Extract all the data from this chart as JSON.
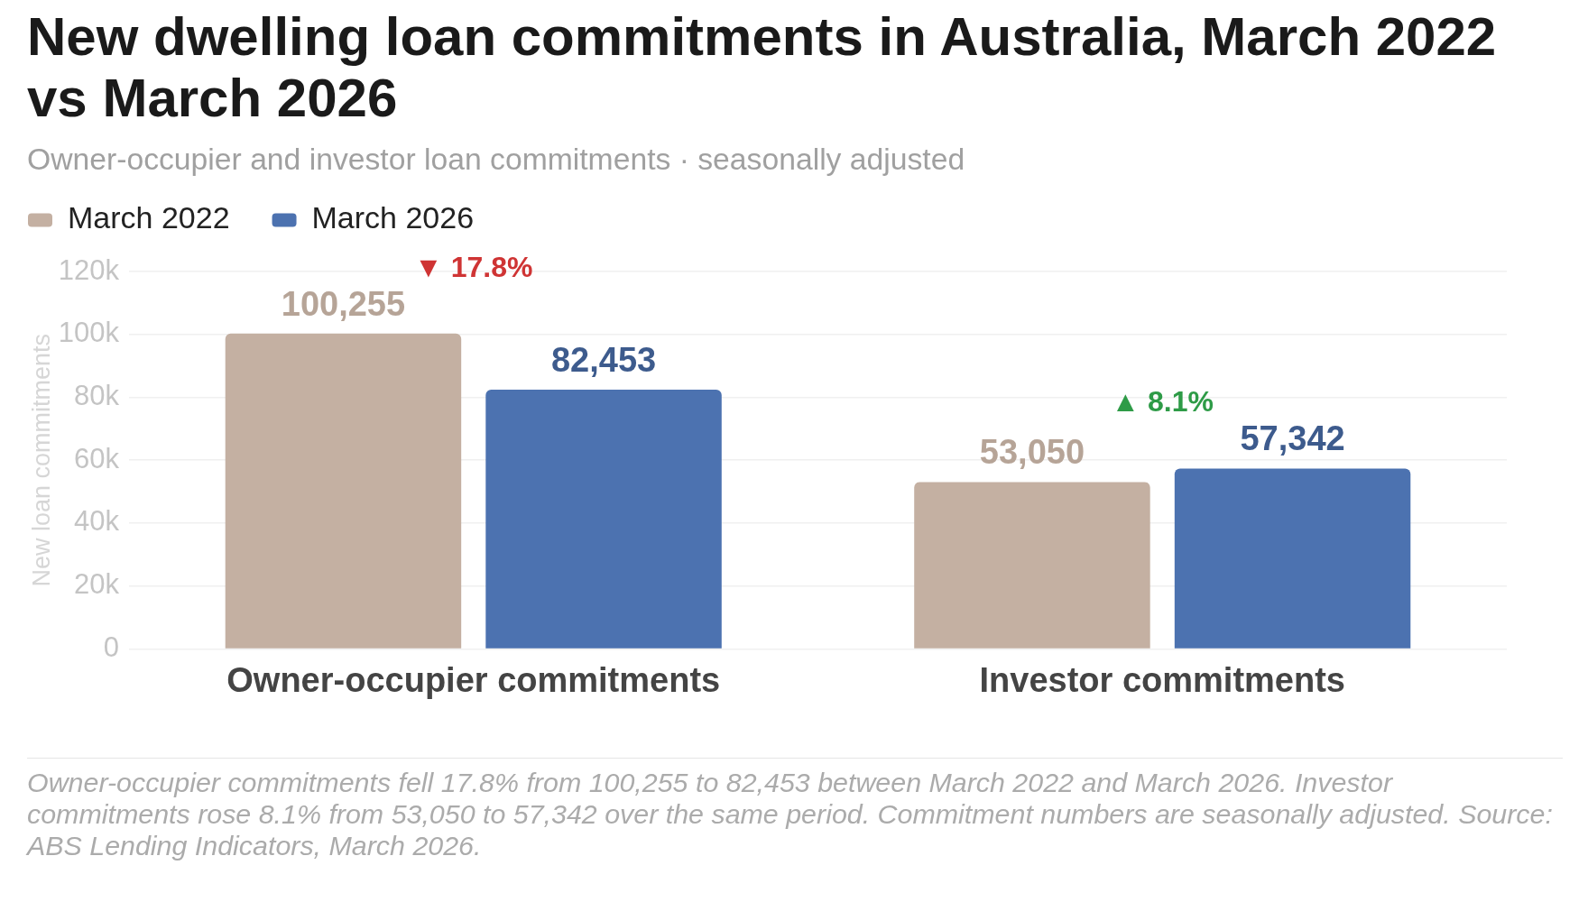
{
  "chart_data": {
    "type": "bar",
    "title": "New dwelling loan commitments in Australia, March 2022 vs March 2026",
    "subtitle": "Owner-occupier and investor loan commitments · seasonally adjusted",
    "ylabel": "New loan commitments",
    "categories": [
      "Owner-occupier commitments",
      "Investor commitments"
    ],
    "series": [
      {
        "name": "March 2022",
        "color": "#c4b0a2",
        "values": [
          100255,
          53050
        ],
        "value_labels": [
          "100,255",
          "53,050"
        ]
      },
      {
        "name": "March 2026",
        "color": "#4c72b0",
        "values": [
          82453,
          57342
        ],
        "value_labels": [
          "82,453",
          "57,342"
        ]
      }
    ],
    "ylim": [
      0,
      120000
    ],
    "yticks": [
      0,
      {
        "value": 20000,
        "label": "20k"
      },
      {
        "value": 40000,
        "label": "40k"
      },
      {
        "value": 60000,
        "label": "60k"
      },
      {
        "value": 80000,
        "label": "80k"
      },
      {
        "value": 100000,
        "label": "100k"
      },
      {
        "value": 120000,
        "label": "120k"
      }
    ],
    "grid": "y",
    "legend": "top left",
    "annotations": [
      "▼ 17.8%",
      "▲ 8.1%",
      "Owner-occupier commitments fell 17.8% from 100,255 to 82,453 between March 2022 and March 2026. Investor commitments rose 8.1% from 53,050 to 57,342 over the same period. Commitment numbers are seasonally adjusted. Source: ABS Lending Indicators, March 2026."
    ]
  }
}
